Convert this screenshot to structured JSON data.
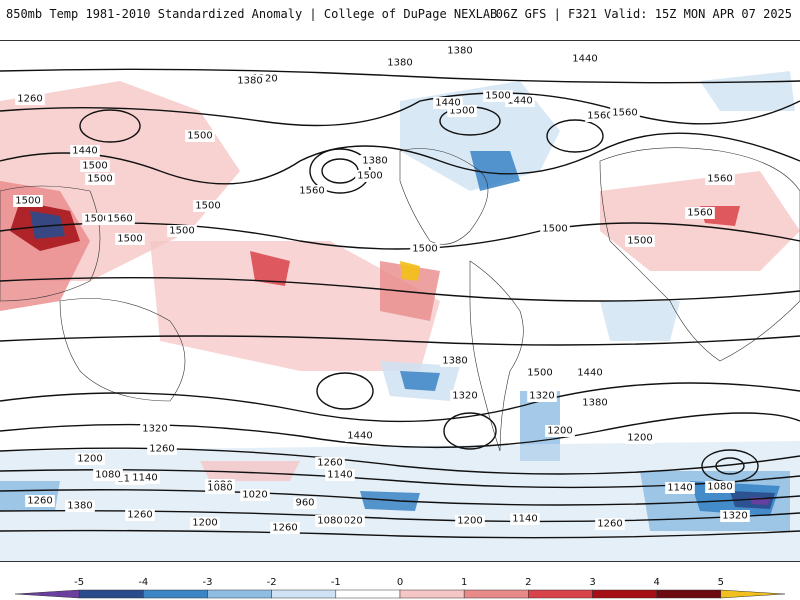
{
  "header": {
    "title": "850mb Temp 1981-2010 Standardized Anomaly | College of DuPage NEXLAB",
    "run_info": "06Z GFS | F321 Valid: 15Z MON APR 07 2025"
  },
  "map": {
    "contour_labels": [
      "1320",
      "1260",
      "1320",
      "1380",
      "1440",
      "1380",
      "1440",
      "1500",
      "1560",
      "1380",
      "1500",
      "1560",
      "1500",
      "1440",
      "1380",
      "1500",
      "1560",
      "1440",
      "1500",
      "1500",
      "1500",
      "1560",
      "1500",
      "1500",
      "1500",
      "1500",
      "1500",
      "1560",
      "1500",
      "1500",
      "1380",
      "1320",
      "1320",
      "1380",
      "1440",
      "1500",
      "1200",
      "1320",
      "1260",
      "1200",
      "1140",
      "1080",
      "1020",
      "1260",
      "1380",
      "1140",
      "1260",
      "1440",
      "1260",
      "1140",
      "1080",
      "1020",
      "1200",
      "960",
      "1020",
      "1080",
      "1200",
      "1260",
      "1140",
      "1200",
      "1260",
      "1140",
      "1080",
      "1320",
      "1560"
    ],
    "shading_colors": {
      "neg5": "#6a3fa0",
      "neg4": "#2a4b8c",
      "neg3": "#3b84c6",
      "neg2": "#8fbde3",
      "neg1": "#cfe2f3",
      "zero": "#ffffff",
      "pos1": "#f6c6c6",
      "pos2": "#e88a8a",
      "pos3": "#d9434a",
      "pos4": "#a50f15",
      "pos5": "#6b0a0f",
      "extreme": "#f2c01e"
    }
  },
  "colorbar": {
    "ticks": [
      "-5",
      "-4",
      "-3",
      "-2",
      "-1",
      "0",
      "1",
      "2",
      "3",
      "4",
      "5"
    ],
    "colors": [
      "#6a3fa0",
      "#2a4b8c",
      "#3b84c6",
      "#8fbde3",
      "#cfe2f3",
      "#ffffff",
      "#f6c6c6",
      "#e88a8a",
      "#d9434a",
      "#a50f15",
      "#6b0a0f",
      "#f2c01e"
    ]
  }
}
